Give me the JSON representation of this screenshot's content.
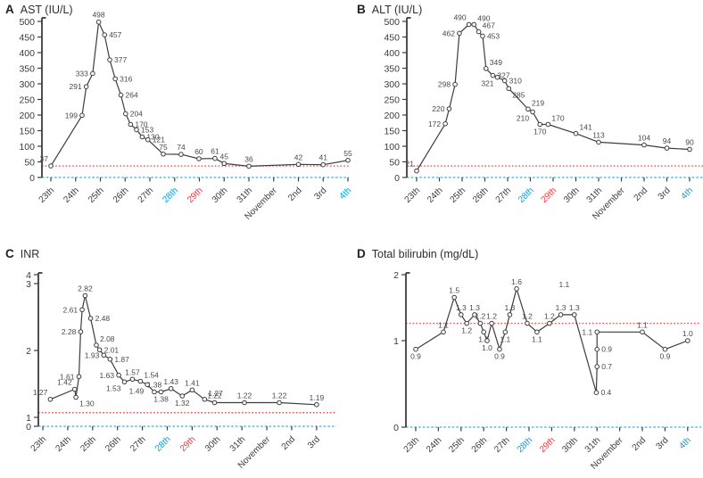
{
  "figure": {
    "palette": {
      "text": "#3b3b3b",
      "line": "#3d3d3d",
      "value_label": "#4a4a4a",
      "blue": "#00a0dc",
      "red": "#e8383d",
      "ref_red": "#ef5055",
      "ref_blue": "#72c7e7"
    }
  },
  "chart_data": [
    {
      "id": "A",
      "panel_letter": "A",
      "title": "AST (IU/L)",
      "type": "line",
      "ylim": [
        0,
        500
      ],
      "yticks": [
        0,
        50,
        100,
        150,
        200,
        250,
        300,
        350,
        400,
        450,
        500
      ],
      "legend": "none",
      "grid": false,
      "ref_lines": [
        {
          "name": "upper-normal-limit",
          "value": 37,
          "style": "red-dotted"
        },
        {
          "name": "zero-baseline",
          "value": 0,
          "style": "blue-dashed"
        }
      ],
      "x_ticks": [
        {
          "label": "23th",
          "color": "default"
        },
        {
          "label": "24th",
          "color": "default"
        },
        {
          "label": "25th",
          "color": "default"
        },
        {
          "label": "26th",
          "color": "default"
        },
        {
          "label": "27th",
          "color": "default"
        },
        {
          "label": "28th",
          "color": "blue"
        },
        {
          "label": "29th",
          "color": "red"
        },
        {
          "label": "30th",
          "color": "default"
        },
        {
          "label": "31th",
          "color": "default"
        },
        {
          "label": "November",
          "color": "default"
        },
        {
          "label": "2nd",
          "color": "default"
        },
        {
          "label": "3rd",
          "color": "default"
        },
        {
          "label": "4th",
          "color": "blue"
        }
      ],
      "points": [
        {
          "x": 0.0,
          "v": 37,
          "label": "37",
          "pos": "al"
        },
        {
          "x": 1.26,
          "v": 199,
          "label": "199",
          "pos": "l"
        },
        {
          "x": 1.43,
          "v": 291,
          "label": "291",
          "pos": "l"
        },
        {
          "x": 1.69,
          "v": 333,
          "label": "333",
          "pos": "l"
        },
        {
          "x": 1.93,
          "v": 498,
          "label": "498",
          "pos": "a"
        },
        {
          "x": 2.17,
          "v": 457,
          "label": "457",
          "pos": "r"
        },
        {
          "x": 2.38,
          "v": 377,
          "label": "377",
          "pos": "r"
        },
        {
          "x": 2.6,
          "v": 316,
          "label": "316",
          "pos": "r"
        },
        {
          "x": 2.83,
          "v": 264,
          "label": "264",
          "pos": "r"
        },
        {
          "x": 3.02,
          "v": 204,
          "label": "204",
          "pos": "r"
        },
        {
          "x": 3.22,
          "v": 170,
          "label": "170",
          "pos": "r"
        },
        {
          "x": 3.46,
          "v": 153,
          "label": "153",
          "pos": "r"
        },
        {
          "x": 3.69,
          "v": 130,
          "label": "130",
          "pos": "r"
        },
        {
          "x": 3.92,
          "v": 121,
          "label": "121",
          "pos": "r"
        },
        {
          "x": 4.54,
          "v": 75,
          "label": "75",
          "pos": "a"
        },
        {
          "x": 5.26,
          "v": 74,
          "label": "74",
          "pos": "a"
        },
        {
          "x": 5.98,
          "v": 60,
          "label": "60",
          "pos": "a"
        },
        {
          "x": 6.63,
          "v": 61,
          "label": "61",
          "pos": "a"
        },
        {
          "x": 7.0,
          "v": 45,
          "label": "45",
          "pos": "a"
        },
        {
          "x": 8.0,
          "v": 36,
          "label": "36",
          "pos": "a"
        },
        {
          "x": 10.0,
          "v": 42,
          "label": "42",
          "pos": "a"
        },
        {
          "x": 11.0,
          "v": 41,
          "label": "41",
          "pos": "a"
        },
        {
          "x": 12.0,
          "v": 55,
          "label": "55",
          "pos": "a"
        }
      ],
      "annotations": []
    },
    {
      "id": "B",
      "panel_letter": "B",
      "title": "ALT (IU/L)",
      "type": "line",
      "ylim": [
        0,
        500
      ],
      "yticks": [
        0,
        50,
        100,
        150,
        200,
        250,
        300,
        350,
        400,
        450,
        500
      ],
      "legend": "none",
      "grid": false,
      "ref_lines": [
        {
          "name": "upper-normal-limit",
          "value": 37,
          "style": "red-dotted"
        },
        {
          "name": "zero-baseline",
          "value": 0,
          "style": "blue-dashed"
        }
      ],
      "x_ticks": [
        {
          "label": "23th",
          "color": "default"
        },
        {
          "label": "24th",
          "color": "default"
        },
        {
          "label": "25th",
          "color": "default"
        },
        {
          "label": "26th",
          "color": "default"
        },
        {
          "label": "27th",
          "color": "default"
        },
        {
          "label": "28th",
          "color": "blue"
        },
        {
          "label": "29th",
          "color": "red"
        },
        {
          "label": "30th",
          "color": "default"
        },
        {
          "label": "31th",
          "color": "default"
        },
        {
          "label": "November",
          "color": "default"
        },
        {
          "label": "2nd",
          "color": "default"
        },
        {
          "label": "3rd",
          "color": "default"
        },
        {
          "label": "4th",
          "color": "blue"
        }
      ],
      "points": [
        {
          "x": 0.0,
          "v": 21,
          "label": "21",
          "pos": "al"
        },
        {
          "x": 1.26,
          "v": 172,
          "label": "172",
          "pos": "l"
        },
        {
          "x": 1.43,
          "v": 220,
          "label": "220",
          "pos": "l"
        },
        {
          "x": 1.69,
          "v": 298,
          "label": "298",
          "pos": "l"
        },
        {
          "x": 1.88,
          "v": 462,
          "label": "462",
          "pos": "l"
        },
        {
          "x": 2.3,
          "v": 490,
          "label": "490",
          "pos": "al"
        },
        {
          "x": 2.52,
          "v": 490,
          "label": "490",
          "pos": "ar"
        },
        {
          "x": 2.73,
          "v": 467,
          "label": "467",
          "pos": "ar"
        },
        {
          "x": 2.9,
          "v": 453,
          "label": "453",
          "pos": "r"
        },
        {
          "x": 3.05,
          "v": 349,
          "label": "349",
          "pos": "ar"
        },
        {
          "x": 3.35,
          "v": 327,
          "label": "327",
          "pos": "r"
        },
        {
          "x": 3.55,
          "v": 321,
          "label": "321",
          "pos": "bl"
        },
        {
          "x": 3.87,
          "v": 310,
          "label": "310",
          "pos": "r"
        },
        {
          "x": 4.05,
          "v": 285,
          "label": "285",
          "pos": "br"
        },
        {
          "x": 4.9,
          "v": 219,
          "label": "219",
          "pos": "ar"
        },
        {
          "x": 5.1,
          "v": 210,
          "label": "210",
          "pos": "bl"
        },
        {
          "x": 5.42,
          "v": 170,
          "label": "170",
          "pos": "b"
        },
        {
          "x": 5.78,
          "v": 170,
          "label": "170",
          "pos": "ar"
        },
        {
          "x": 7.0,
          "v": 141,
          "label": "141",
          "pos": "ar"
        },
        {
          "x": 8.0,
          "v": 113,
          "label": "113",
          "pos": "a"
        },
        {
          "x": 10.0,
          "v": 104,
          "label": "104",
          "pos": "a"
        },
        {
          "x": 11.0,
          "v": 94,
          "label": "94",
          "pos": "a"
        },
        {
          "x": 12.0,
          "v": 90,
          "label": "90",
          "pos": "a"
        }
      ],
      "annotations": []
    },
    {
      "id": "C",
      "panel_letter": "C",
      "title": "INR",
      "type": "line",
      "ylim": [
        0,
        4
      ],
      "yticks": [
        0,
        1,
        2,
        3,
        4
      ],
      "legend": "none",
      "grid": false,
      "ref_lines": [
        {
          "name": "upper-normal-limit",
          "value": 1.07,
          "style": "red-dotted"
        },
        {
          "name": "zero-baseline",
          "value": 0,
          "style": "blue-dashed"
        }
      ],
      "x_ticks": [
        {
          "label": "23th",
          "color": "default"
        },
        {
          "label": "24th",
          "color": "default"
        },
        {
          "label": "25th",
          "color": "default"
        },
        {
          "label": "26th",
          "color": "default"
        },
        {
          "label": "27th",
          "color": "default"
        },
        {
          "label": "28th",
          "color": "blue"
        },
        {
          "label": "29th",
          "color": "red"
        },
        {
          "label": "30th",
          "color": "default"
        },
        {
          "label": "31th",
          "color": "default"
        },
        {
          "label": "November",
          "color": "default"
        },
        {
          "label": "2nd",
          "color": "default"
        },
        {
          "label": "3rd",
          "color": "default"
        }
      ],
      "points": [
        {
          "x": 0.3,
          "v": 1.27,
          "label": "1.27",
          "pos": "al"
        },
        {
          "x": 1.28,
          "v": 1.42,
          "label": "1.42",
          "pos": "al"
        },
        {
          "x": 1.33,
          "v": 1.3,
          "label": "1.30",
          "pos": "br"
        },
        {
          "x": 1.45,
          "v": 1.61,
          "label": "1.61",
          "pos": "l"
        },
        {
          "x": 1.52,
          "v": 2.28,
          "label": "2.28",
          "pos": "l"
        },
        {
          "x": 1.58,
          "v": 2.61,
          "label": "2.61",
          "pos": "l"
        },
        {
          "x": 1.7,
          "v": 2.82,
          "label": "2.82",
          "pos": "a"
        },
        {
          "x": 1.92,
          "v": 2.48,
          "label": "2.48",
          "pos": "r"
        },
        {
          "x": 2.15,
          "v": 2.08,
          "label": "2.08",
          "pos": "ar"
        },
        {
          "x": 2.28,
          "v": 2.01,
          "label": "2.01",
          "pos": "r"
        },
        {
          "x": 2.45,
          "v": 1.93,
          "label": "1.93",
          "pos": "l"
        },
        {
          "x": 2.7,
          "v": 1.87,
          "label": "1.87",
          "pos": "r"
        },
        {
          "x": 3.05,
          "v": 1.63,
          "label": "1.63",
          "pos": "l"
        },
        {
          "x": 3.28,
          "v": 1.53,
          "label": "1.53",
          "pos": "bl"
        },
        {
          "x": 3.6,
          "v": 1.57,
          "label": "1.57",
          "pos": "a"
        },
        {
          "x": 3.92,
          "v": 1.54,
          "label": "1.54",
          "pos": "ar"
        },
        {
          "x": 4.2,
          "v": 1.49,
          "label": "1.49",
          "pos": "bl"
        },
        {
          "x": 4.48,
          "v": 1.38,
          "label": "1.38",
          "pos": "a"
        },
        {
          "x": 4.75,
          "v": 1.38,
          "label": "1.38",
          "pos": "b"
        },
        {
          "x": 5.15,
          "v": 1.43,
          "label": "1.43",
          "pos": "a"
        },
        {
          "x": 5.6,
          "v": 1.32,
          "label": "1.32",
          "pos": "b"
        },
        {
          "x": 6.0,
          "v": 1.41,
          "label": "1.41",
          "pos": "a"
        },
        {
          "x": 6.5,
          "v": 1.27,
          "label": "1.27",
          "pos": "ar"
        },
        {
          "x": 6.9,
          "v": 1.22,
          "label": "1.22",
          "pos": "a"
        },
        {
          "x": 8.1,
          "v": 1.22,
          "label": "1.22",
          "pos": "a"
        },
        {
          "x": 9.5,
          "v": 1.22,
          "label": "1.22",
          "pos": "a"
        },
        {
          "x": 11.0,
          "v": 1.19,
          "label": "1.19",
          "pos": "a"
        }
      ],
      "annotations": []
    },
    {
      "id": "D",
      "panel_letter": "D",
      "title": "Total bilirubin (mg/dL)",
      "type": "line",
      "ylim": [
        0,
        2
      ],
      "yticks": [
        0,
        1,
        2
      ],
      "legend": "none",
      "grid": false,
      "ref_lines": [
        {
          "name": "upper-normal-limit",
          "value": 1.2,
          "style": "red-dotted"
        },
        {
          "name": "zero-baseline",
          "value": 0,
          "style": "blue-dashed"
        }
      ],
      "x_ticks": [
        {
          "label": "23th",
          "color": "default"
        },
        {
          "label": "24th",
          "color": "default"
        },
        {
          "label": "25th",
          "color": "default"
        },
        {
          "label": "26th",
          "color": "default"
        },
        {
          "label": "27th",
          "color": "default"
        },
        {
          "label": "28th",
          "color": "blue"
        },
        {
          "label": "29th",
          "color": "red"
        },
        {
          "label": "30th",
          "color": "default"
        },
        {
          "label": "31th",
          "color": "default"
        },
        {
          "label": "November",
          "color": "default"
        },
        {
          "label": "2nd",
          "color": "default"
        },
        {
          "label": "3rd",
          "color": "default"
        },
        {
          "label": "4th",
          "color": "blue"
        }
      ],
      "points": [
        {
          "x": 0.0,
          "v": 0.9,
          "label": "0.9",
          "pos": "b"
        },
        {
          "x": 1.22,
          "v": 1.1,
          "label": "1.1",
          "pos": "a"
        },
        {
          "x": 1.7,
          "v": 1.5,
          "label": "1.5",
          "pos": "a"
        },
        {
          "x": 2.0,
          "v": 1.3,
          "label": "1.3",
          "pos": "a"
        },
        {
          "x": 2.25,
          "v": 1.2,
          "label": "1.2",
          "pos": "b"
        },
        {
          "x": 2.6,
          "v": 1.3,
          "label": "1.3",
          "pos": "a"
        },
        {
          "x": 2.85,
          "v": 1.2,
          "label": "1.2",
          "pos": "a"
        },
        {
          "x": 3.0,
          "v": 1.1,
          "label": "1.1",
          "pos": "b"
        },
        {
          "x": 3.15,
          "v": 1.0,
          "label": "1.0",
          "pos": "b"
        },
        {
          "x": 3.35,
          "v": 1.2,
          "label": "1.2",
          "pos": "a"
        },
        {
          "x": 3.7,
          "v": 0.9,
          "label": "0.9",
          "pos": "b"
        },
        {
          "x": 3.95,
          "v": 1.1,
          "label": "1.1",
          "pos": "b"
        },
        {
          "x": 4.15,
          "v": 1.3,
          "label": "1.3",
          "pos": "a"
        },
        {
          "x": 4.45,
          "v": 1.6,
          "label": "1.6",
          "pos": "a"
        },
        {
          "x": 4.92,
          "v": 1.2,
          "label": "1.2",
          "pos": "a"
        },
        {
          "x": 5.35,
          "v": 1.1,
          "label": "1.1",
          "pos": "b"
        },
        {
          "x": 5.9,
          "v": 1.2,
          "label": "1.2",
          "pos": "a"
        },
        {
          "x": 6.4,
          "v": 1.3,
          "label": "1.3",
          "pos": "a"
        },
        {
          "x": 7.0,
          "v": 1.3,
          "label": "1.3",
          "pos": "a"
        },
        {
          "x": 7.97,
          "v": 0.4,
          "label": "0.4",
          "pos": "r"
        },
        {
          "x": 8.0,
          "v": 0.7,
          "label": "0.7",
          "pos": "r"
        },
        {
          "x": 8.0,
          "v": 0.9,
          "label": "0.9",
          "pos": "r"
        },
        {
          "x": 8.0,
          "v": 1.1,
          "label": "1.1",
          "pos": "l"
        },
        {
          "x": 10.0,
          "v": 1.1,
          "label": "1.1",
          "pos": "a"
        },
        {
          "x": 11.0,
          "v": 0.9,
          "label": "0.9",
          "pos": "b"
        },
        {
          "x": 12.0,
          "v": 1.0,
          "label": "1.0",
          "pos": "a"
        }
      ],
      "annotations": [
        {
          "x": 6.55,
          "v": 1.62,
          "label": "1.1"
        }
      ]
    }
  ]
}
